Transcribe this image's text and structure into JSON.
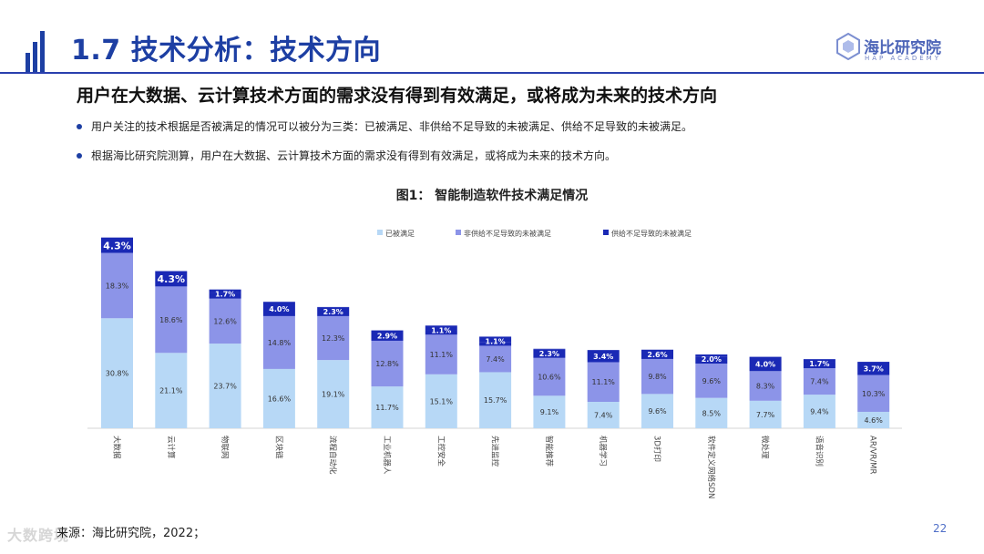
{
  "header": {
    "title": "1.7 技术分析：技术方向",
    "logo_text": "海比研究院",
    "logo_sub": "HAP ACADEMY"
  },
  "subtitle": "用户在大数据、云计算技术方面的需求没有得到有效满足，或将成为未来的技术方向",
  "bullets": [
    "用户关注的技术根据是否被满足的情况可以被分为三类：已被满足、非供给不足导致的未被满足、供给不足导致的未被满足。",
    "根据海比研究院测算，用户在大数据、云计算技术方面的需求没有得到有效满足，或将成为未来的技术方向。"
  ],
  "chart_title": "图1：  智能制造软件技术满足情况",
  "footer": {
    "source": "来源：海比研究院，2022；",
    "page": "22",
    "watermark": "大数跨境"
  },
  "colors": {
    "brand": "#1d3fa3",
    "s1": "#b7d8f6",
    "s2": "#8c94e8",
    "s3": "#1a29b5"
  },
  "chart_data": {
    "type": "bar",
    "stacked": true,
    "legend_position": "top",
    "categories": [
      "大数据",
      "云计算",
      "物联网",
      "区块链",
      "流程自动化",
      "工业机器人",
      "工控安全",
      "先进监控",
      "智能推荐",
      "机器学习",
      "3D打印",
      "软件定义网络SDN",
      "微处理",
      "语音识别",
      "AR/VR/MR"
    ],
    "series": [
      {
        "name": "已被满足",
        "color": "#b7d8f6",
        "values": [
          30.8,
          21.1,
          23.7,
          16.6,
          19.1,
          11.7,
          15.1,
          15.7,
          9.1,
          7.4,
          9.6,
          8.5,
          7.7,
          9.4,
          4.6
        ],
        "labels": [
          "30.8%",
          "21.1%",
          "23.7%",
          "16.6%",
          "19.1%",
          "11.7%",
          "15.1%",
          "15.7%",
          "9.1%",
          "7.4%",
          "9.6%",
          "8.5%",
          "7.7%",
          "9.4%",
          "4.6%"
        ]
      },
      {
        "name": "非供给不足导致的未被满足",
        "color": "#8c94e8",
        "values": [
          18.3,
          18.6,
          12.6,
          14.8,
          12.3,
          12.8,
          11.1,
          7.4,
          10.6,
          11.1,
          9.8,
          9.6,
          8.3,
          7.4,
          10.3
        ],
        "labels": [
          "18.3%",
          "18.6%",
          "12.6%",
          "14.8%",
          "12.3%",
          "12.8%",
          "11.1%",
          "7.4%",
          "10.6%",
          "11.1%",
          "9.8%",
          "9.6%",
          "8.3%",
          "7.4%",
          "10.3%"
        ]
      },
      {
        "name": "供给不足导致的未被满足",
        "color": "#1a29b5",
        "values": [
          4.3,
          4.3,
          1.7,
          4.0,
          2.3,
          2.9,
          1.1,
          1.1,
          2.3,
          3.4,
          2.6,
          2.0,
          4.0,
          1.7,
          3.7
        ],
        "labels": [
          "4.3%",
          "4.3%",
          "1.7%",
          "4.0%",
          "2.3%",
          "2.9%",
          "1.1%",
          "1.1%",
          "2.3%",
          "3.4%",
          "2.6%",
          "2.0%",
          "4.0%",
          "1.7%",
          "3.7%"
        ]
      }
    ],
    "ylim": [
      0,
      55
    ],
    "grid": false
  }
}
